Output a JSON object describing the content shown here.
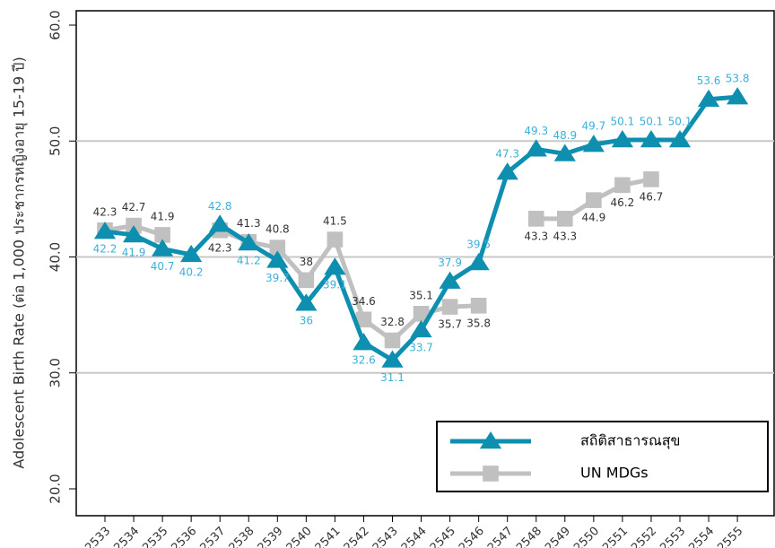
{
  "chart_data": {
    "type": "line",
    "y_label": "Adolescent Birth Rate (ต่อ 1,000 ประชากรหญิงอายุ 15-19 ปี)",
    "categories": [
      "2533",
      "2534",
      "2535",
      "2536",
      "2537",
      "2538",
      "2539",
      "2540",
      "2541",
      "2542",
      "2543",
      "2544",
      "2545",
      "2546",
      "2547",
      "2548",
      "2549",
      "2550",
      "2551",
      "2552",
      "2553",
      "2554",
      "2555"
    ],
    "series": [
      {
        "name": "สถิติสาธารณสุข",
        "color": "#0e8fb0",
        "label_color": "#3ab0d8",
        "marker": "triangle",
        "values": [
          42.2,
          41.9,
          40.7,
          40.2,
          42.8,
          41.2,
          39.7,
          36.0,
          39.1,
          32.6,
          31.1,
          33.7,
          37.9,
          39.5,
          47.3,
          49.3,
          48.9,
          49.7,
          50.1,
          50.1,
          50.1,
          53.6,
          53.8
        ]
      },
      {
        "name": "UN MDGs",
        "color": "#c0c0c0",
        "label_color": "#333333",
        "marker": "square",
        "values": [
          42.3,
          42.7,
          41.9,
          null,
          42.3,
          41.3,
          40.8,
          38.0,
          41.5,
          34.6,
          32.8,
          35.1,
          35.7,
          35.8,
          null,
          43.3,
          43.3,
          44.9,
          46.2,
          46.7,
          null,
          null,
          null
        ]
      }
    ],
    "ylim": [
      20,
      60
    ],
    "yticks": [
      {
        "value": 20,
        "label": "20.0"
      },
      {
        "value": 30,
        "label": "30.0"
      },
      {
        "value": 40,
        "label": "40.0"
      },
      {
        "value": 50,
        "label": "50.0"
      },
      {
        "value": 60,
        "label": "60.0"
      }
    ],
    "grid": true,
    "legend": "lower right"
  }
}
